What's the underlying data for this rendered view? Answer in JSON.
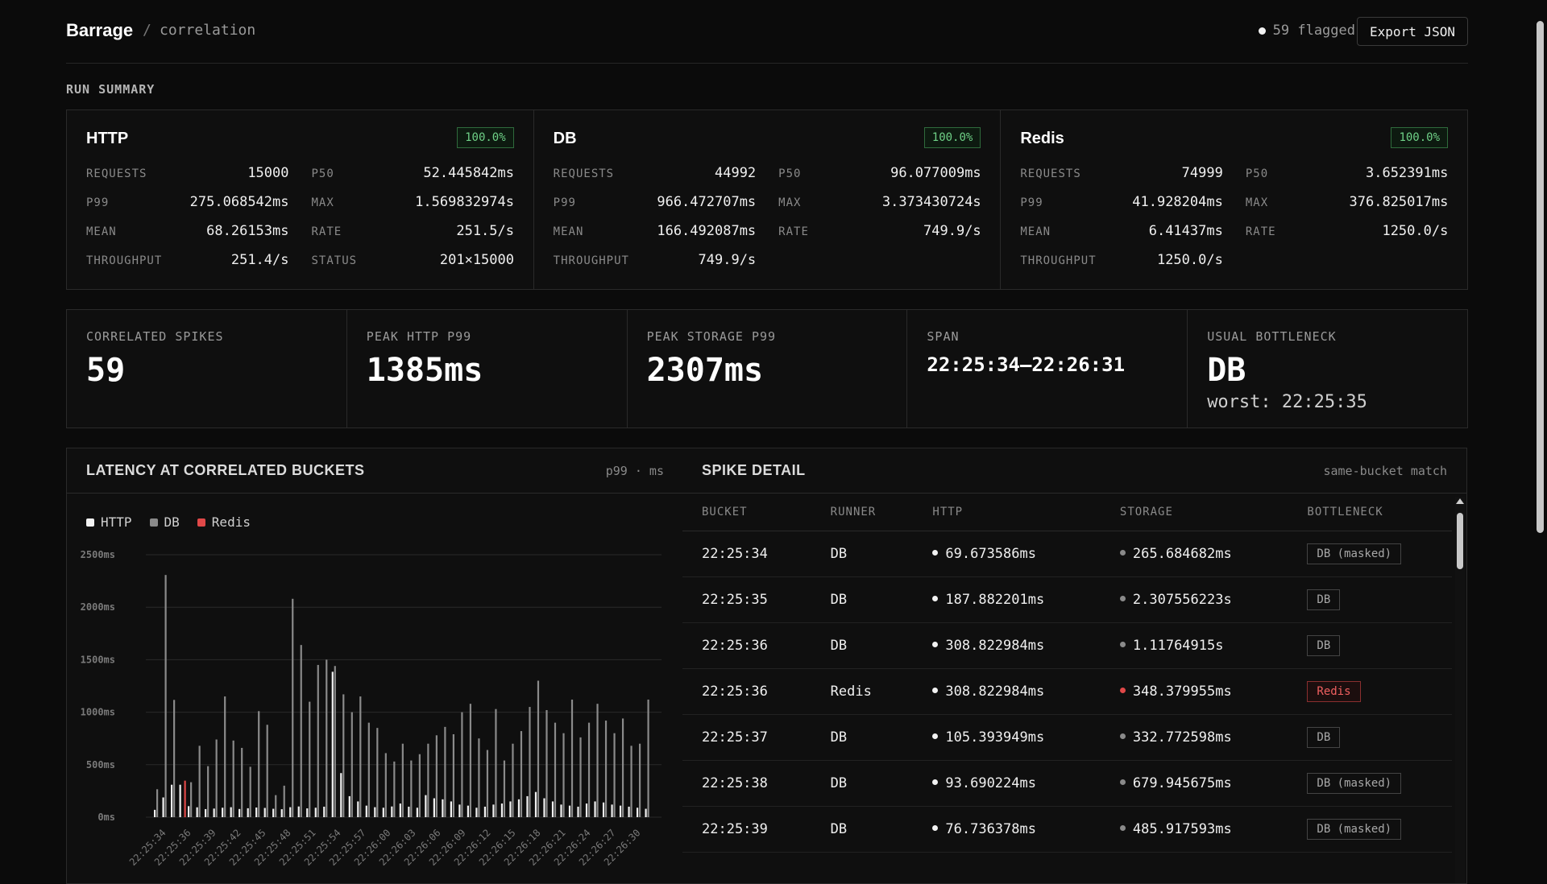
{
  "header": {
    "brand": "Barrage",
    "separator": "/",
    "crumb": "correlation",
    "flagged": "59 flagged",
    "export_label": "Export JSON"
  },
  "run_summary": {
    "label": "RUN SUMMARY",
    "services": [
      {
        "name": "HTTP",
        "badge": "100.0%",
        "metrics": [
          {
            "label": "REQUESTS",
            "value": "15000"
          },
          {
            "label": "P50",
            "value": "52.445842ms"
          },
          {
            "label": "P99",
            "value": "275.068542ms"
          },
          {
            "label": "MAX",
            "value": "1.569832974s"
          },
          {
            "label": "MEAN",
            "value": "68.26153ms"
          },
          {
            "label": "RATE",
            "value": "251.5/s"
          },
          {
            "label": "THROUGHPUT",
            "value": "251.4/s"
          },
          {
            "label": "STATUS",
            "value": "201×15000"
          }
        ]
      },
      {
        "name": "DB",
        "badge": "100.0%",
        "metrics": [
          {
            "label": "REQUESTS",
            "value": "44992"
          },
          {
            "label": "P50",
            "value": "96.077009ms"
          },
          {
            "label": "P99",
            "value": "966.472707ms"
          },
          {
            "label": "MAX",
            "value": "3.373430724s"
          },
          {
            "label": "MEAN",
            "value": "166.492087ms"
          },
          {
            "label": "RATE",
            "value": "749.9/s"
          },
          {
            "label": "THROUGHPUT",
            "value": "749.9/s"
          }
        ]
      },
      {
        "name": "Redis",
        "badge": "100.0%",
        "metrics": [
          {
            "label": "REQUESTS",
            "value": "74999"
          },
          {
            "label": "P50",
            "value": "3.652391ms"
          },
          {
            "label": "P99",
            "value": "41.928204ms"
          },
          {
            "label": "MAX",
            "value": "376.825017ms"
          },
          {
            "label": "MEAN",
            "value": "6.41437ms"
          },
          {
            "label": "RATE",
            "value": "1250.0/s"
          },
          {
            "label": "THROUGHPUT",
            "value": "1250.0/s"
          }
        ]
      }
    ]
  },
  "stats": {
    "spikes": {
      "label": "CORRELATED SPIKES",
      "value": "59"
    },
    "peak_http": {
      "label": "PEAK HTTP P99",
      "value": "1385ms"
    },
    "peak_storage": {
      "label": "PEAK STORAGE P99",
      "value": "2307ms"
    },
    "span": {
      "label": "SPAN",
      "value": "22:25:34–22:26:31"
    },
    "bottleneck": {
      "label": "USUAL BOTTLENECK",
      "value": "DB",
      "sub": "worst: 22:25:35"
    }
  },
  "chart_panel": {
    "title": "LATENCY AT CORRELATED BUCKETS",
    "note": "p99 · ms"
  },
  "chart_data": {
    "type": "bar",
    "ylim": [
      0,
      2500
    ],
    "yticks": [
      "2500ms",
      "2000ms",
      "1500ms",
      "1000ms",
      "500ms",
      "0ms"
    ],
    "tick_values": [
      2500,
      2000,
      1500,
      1000,
      500,
      0
    ],
    "xtick_labels": [
      "22:25:34",
      "22:25:36",
      "22:25:39",
      "22:25:42",
      "22:25:45",
      "22:25:48",
      "22:25:51",
      "22:25:54",
      "22:25:57",
      "22:26:00",
      "22:26:03",
      "22:26:06",
      "22:26:09",
      "22:26:12",
      "22:26:15",
      "22:26:18",
      "22:26:21",
      "22:26:24",
      "22:26:27",
      "22:26:30"
    ],
    "colors": {
      "HTTP": "#f2f2f2",
      "DB": "#8a8a8a",
      "Redis": "#e04848"
    },
    "series": [
      {
        "name": "HTTP",
        "values": [
          70,
          188,
          309,
          309,
          105,
          94,
          77,
          82,
          90,
          95,
          78,
          85,
          92,
          88,
          80,
          76,
          95,
          102,
          84,
          90,
          100,
          1385,
          420,
          200,
          150,
          110,
          95,
          90,
          102,
          130,
          100,
          90,
          210,
          180,
          170,
          150,
          120,
          110,
          90,
          100,
          120,
          130,
          150,
          170,
          200,
          240,
          180,
          150,
          120,
          110,
          100,
          130,
          150,
          140,
          120,
          110,
          100,
          90,
          80
        ]
      },
      {
        "name": "DB",
        "values": [
          266,
          2307,
          1117,
          0,
          333,
          680,
          486,
          740,
          1150,
          730,
          660,
          480,
          1010,
          880,
          210,
          300,
          2080,
          1640,
          1100,
          1450,
          1500,
          1440,
          1170,
          1000,
          1150,
          900,
          850,
          610,
          530,
          700,
          540,
          600,
          700,
          780,
          860,
          790,
          1000,
          1080,
          750,
          640,
          1030,
          540,
          700,
          820,
          1050,
          1300,
          1020,
          900,
          800,
          1120,
          760,
          900,
          1080,
          920,
          800,
          940,
          680,
          700,
          1120
        ]
      },
      {
        "name": "Redis",
        "values": [
          0,
          0,
          0,
          348,
          0,
          0,
          0,
          0,
          0,
          0,
          0,
          0,
          0,
          0,
          0,
          0,
          0,
          0,
          0,
          0,
          0,
          0,
          0,
          0,
          0,
          0,
          0,
          0,
          0,
          0,
          0,
          0,
          0,
          0,
          0,
          0,
          0,
          0,
          0,
          0,
          0,
          0,
          0,
          0,
          0,
          0,
          0,
          0,
          0,
          0,
          0,
          0,
          0,
          0,
          0,
          0,
          0,
          0,
          0
        ]
      }
    ]
  },
  "spike_panel": {
    "title": "SPIKE DETAIL",
    "note": "same-bucket match",
    "columns": [
      "BUCKET",
      "RUNNER",
      "HTTP",
      "STORAGE",
      "BOTTLENECK"
    ],
    "rows": [
      {
        "bucket": "22:25:34",
        "runner": "DB",
        "http": "69.673586ms",
        "storage": "265.684682ms",
        "bottleneck": "DB (masked)",
        "kind": "db"
      },
      {
        "bucket": "22:25:35",
        "runner": "DB",
        "http": "187.882201ms",
        "storage": "2.307556223s",
        "bottleneck": "DB",
        "kind": "db"
      },
      {
        "bucket": "22:25:36",
        "runner": "DB",
        "http": "308.822984ms",
        "storage": "1.11764915s",
        "bottleneck": "DB",
        "kind": "db"
      },
      {
        "bucket": "22:25:36",
        "runner": "Redis",
        "http": "308.822984ms",
        "storage": "348.379955ms",
        "bottleneck": "Redis",
        "kind": "redis"
      },
      {
        "bucket": "22:25:37",
        "runner": "DB",
        "http": "105.393949ms",
        "storage": "332.772598ms",
        "bottleneck": "DB",
        "kind": "db"
      },
      {
        "bucket": "22:25:38",
        "runner": "DB",
        "http": "93.690224ms",
        "storage": "679.945675ms",
        "bottleneck": "DB (masked)",
        "kind": "db"
      },
      {
        "bucket": "22:25:39",
        "runner": "DB",
        "http": "76.736378ms",
        "storage": "485.917593ms",
        "bottleneck": "DB (masked)",
        "kind": "db"
      }
    ]
  }
}
